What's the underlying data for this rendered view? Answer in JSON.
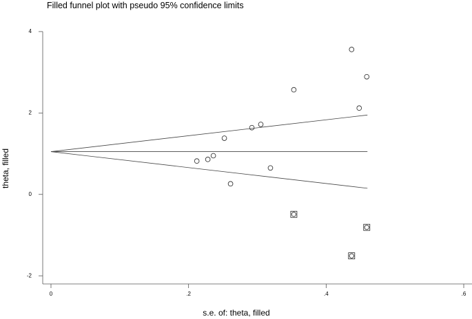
{
  "chart_data": {
    "type": "scatter",
    "title": "Filled funnel plot with pseudo 95% confidence limits",
    "xlabel": "s.e. of: theta, filled",
    "ylabel": "theta, filled",
    "xlim": [
      -0.012,
      0.612
    ],
    "ylim": [
      -2.2,
      4.1
    ],
    "x_ticks": [
      {
        "value": 0,
        "label": "0"
      },
      {
        "value": 0.2,
        "label": ".2"
      },
      {
        "value": 0.4,
        "label": ".4"
      },
      {
        "value": 0.6,
        "label": ".6"
      }
    ],
    "y_ticks": [
      {
        "value": 4,
        "label": "4"
      },
      {
        "value": 2,
        "label": "2"
      },
      {
        "value": 0,
        "label": "0"
      },
      {
        "value": -2,
        "label": "-2"
      }
    ],
    "grid": false,
    "legend": "none",
    "pooled_estimate": 1.05,
    "pseudo_ci_lines": {
      "se_range": [
        0,
        0.46
      ],
      "upper": [
        1.05,
        1.95
      ],
      "lower": [
        1.05,
        0.15
      ]
    },
    "observed_studies": [
      {
        "x": 0.212,
        "y": 0.82
      },
      {
        "x": 0.228,
        "y": 0.86
      },
      {
        "x": 0.236,
        "y": 0.95
      },
      {
        "x": 0.252,
        "y": 1.38
      },
      {
        "x": 0.261,
        "y": 0.26
      },
      {
        "x": 0.292,
        "y": 1.64
      },
      {
        "x": 0.305,
        "y": 1.72
      },
      {
        "x": 0.319,
        "y": 0.65
      },
      {
        "x": 0.353,
        "y": 2.57
      },
      {
        "x": 0.437,
        "y": 3.56
      },
      {
        "x": 0.448,
        "y": 2.12
      },
      {
        "x": 0.459,
        "y": 2.89
      }
    ],
    "filled_studies": [
      {
        "x": 0.353,
        "y": -0.49
      },
      {
        "x": 0.437,
        "y": -1.51
      },
      {
        "x": 0.459,
        "y": -0.81
      }
    ]
  }
}
